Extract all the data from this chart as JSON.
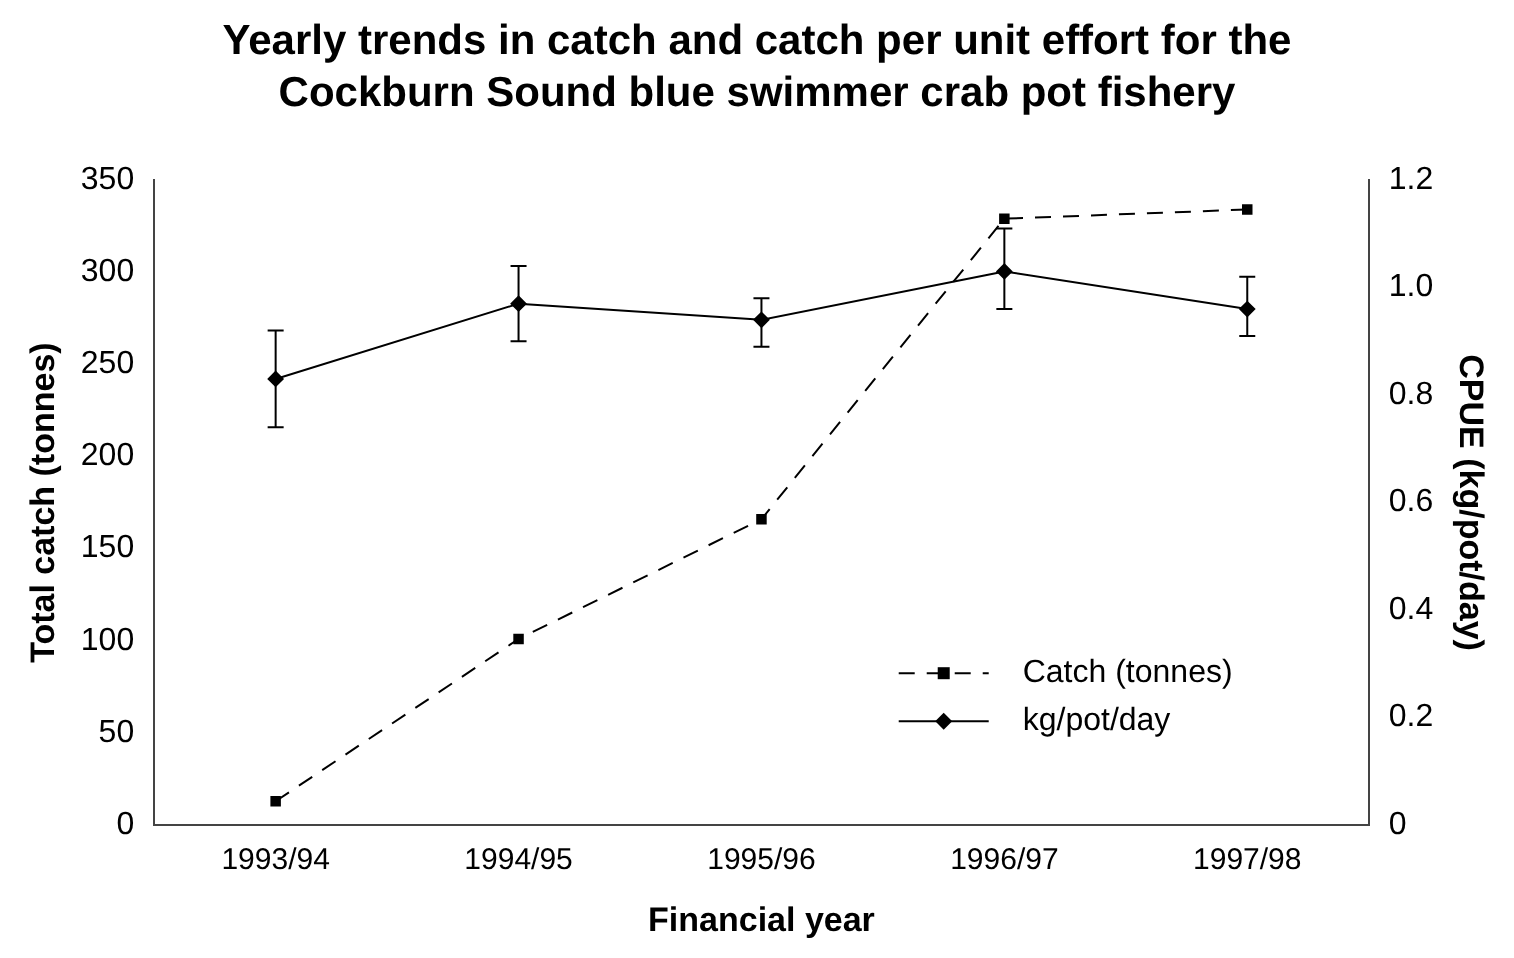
{
  "chart_data": {
    "type": "line",
    "title": "Yearly trends in catch and catch per unit effort for the Cockburn Sound blue swimmer crab pot fishery",
    "xlabel": "Financial year",
    "ylabel": "Total catch (tonnes)",
    "y2label": "CPUE (kg/pot/day)",
    "categories": [
      "1993/94",
      "1994/95",
      "1995/96",
      "1996/97",
      "1997/98"
    ],
    "series": [
      {
        "name": "Catch (tonnes)",
        "color": "#000000",
        "values": [
          13,
          101,
          166,
          329,
          334
        ],
        "marker": "square",
        "line_style": "dashed"
      },
      {
        "name": "kg/pot/day",
        "color": "#000000",
        "values": [
          0.83,
          0.97,
          0.94,
          1.03,
          0.96
        ],
        "axis": "y2",
        "marker": "diamond",
        "line_style": "solid",
        "errors": [
          [
            0.74,
            0.92
          ],
          [
            0.9,
            1.04
          ],
          [
            0.89,
            0.98
          ],
          [
            0.96,
            1.11
          ],
          [
            0.91,
            1.02
          ]
        ]
      }
    ],
    "ylim": [
      0,
      350
    ],
    "yticks": [
      0,
      50,
      100,
      150,
      200,
      250,
      300,
      350
    ],
    "y2lim": [
      0,
      1.2
    ],
    "y2ticks": [
      0,
      {
        "value": 0.2,
        "label": "0.2"
      },
      {
        "value": 0.4,
        "label": "0.4"
      },
      {
        "value": 0.6,
        "label": "0.6"
      },
      {
        "value": 0.8,
        "label": "0.8"
      },
      {
        "value": 1.0,
        "label": "1.0"
      },
      {
        "value": 1.2,
        "label": "1.2"
      }
    ],
    "grid": false,
    "legend": "bottom right"
  }
}
